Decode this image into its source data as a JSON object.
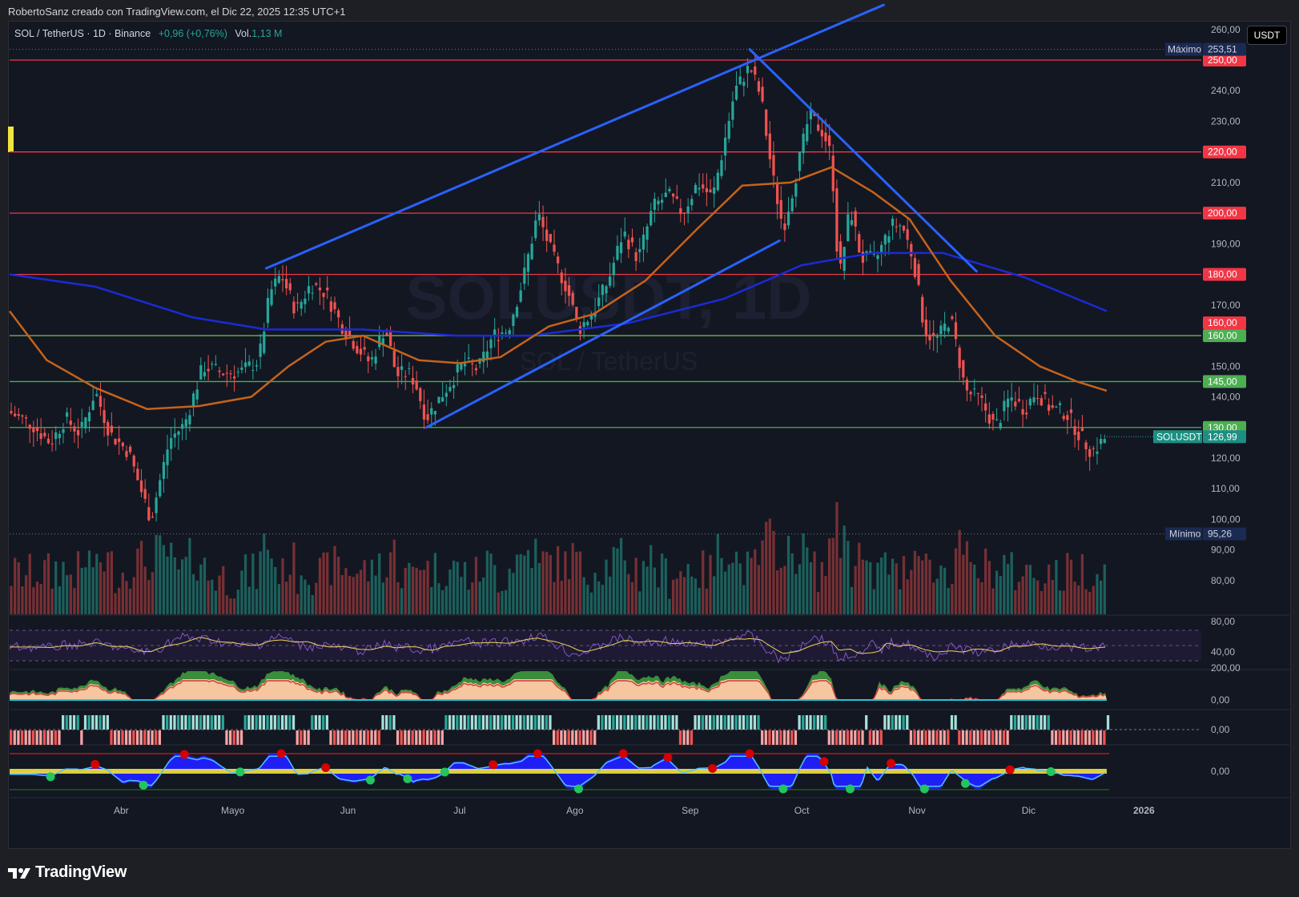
{
  "header": {
    "credit": "RobertoSanz creado con TradingView.com, el Dic 22, 2025 12:35 UTC+1",
    "symbol_line": "SOL / TetherUS · 1D · Binance",
    "change": "+0,96 (+0,76%)",
    "vol_label": "Vol.",
    "vol_value": "1,13 M",
    "currency_button": "USDT"
  },
  "watermark": {
    "symbol": "SOLUSDT, 1D",
    "name": "SOL / TetherUS"
  },
  "footer": {
    "brand": "TradingView"
  },
  "colors": {
    "bull": "#26a69a",
    "bear": "#ef5350",
    "resistance": "#f23645",
    "support": "#4caf50",
    "trendline": "#2962ff",
    "ema_fast": "#c6631a",
    "ma_slow": "#1a2bd6"
  },
  "chart_data": {
    "type": "candlestick",
    "price_axis": {
      "ticks": [
        "260,00",
        "250,00",
        "240,00",
        "230,00",
        "220,00",
        "210,00",
        "200,00",
        "190,00",
        "180,00",
        "170,00",
        "160,00",
        "150,00",
        "140,00",
        "130,00",
        "120,00",
        "110,00",
        "100,00",
        "90,00",
        "80,00"
      ],
      "range": [
        77,
        268
      ]
    },
    "time_axis": {
      "labels": [
        "Abr",
        "Mayo",
        "Jun",
        "Jul",
        "Ago",
        "Sep",
        "Oct",
        "Nov",
        "Dic",
        "2026"
      ],
      "label_dates": [
        "2025-04-01",
        "2025-05-01",
        "2025-06-01",
        "2025-07-01",
        "2025-08-01",
        "2025-09-01",
        "2025-10-01",
        "2025-11-01",
        "2025-12-01",
        "2026-01-01"
      ],
      "start": "2025-03-02",
      "end": "2025-12-22"
    },
    "price_levels": [
      {
        "value": 250.0,
        "label": "250,00",
        "type": "resistance"
      },
      {
        "value": 220.0,
        "label": "220,00",
        "type": "resistance"
      },
      {
        "value": 200.0,
        "label": "200,00",
        "type": "resistance"
      },
      {
        "value": 180.0,
        "label": "180,00",
        "type": "resistance"
      },
      {
        "value": 160.0,
        "label": "160,00",
        "type": "resistance"
      },
      {
        "value": 160.0,
        "label": "160,00",
        "type": "support"
      },
      {
        "value": 145.0,
        "label": "145,00",
        "type": "support"
      },
      {
        "value": 130.0,
        "label": "130,00",
        "type": "support"
      }
    ],
    "max_marker": {
      "label": "Máximo",
      "value": "253,51",
      "price": 253.51
    },
    "min_marker": {
      "label": "Mínimo",
      "value": "95,26",
      "price": 95.26
    },
    "last_price": {
      "label": "SOLUSDT",
      "value": "126,99",
      "price": 126.99
    },
    "trendlines": [
      {
        "from": {
          "date": "2025-05-10",
          "price": 182
        },
        "to": {
          "date": "2025-10-23",
          "price": 268
        }
      },
      {
        "from": {
          "date": "2025-06-22",
          "price": 130
        },
        "to": {
          "date": "2025-09-25",
          "price": 191
        }
      },
      {
        "from": {
          "date": "2025-09-17",
          "price": 253.5
        },
        "to": {
          "date": "2025-11-17",
          "price": 181
        }
      }
    ],
    "price_path": [
      [
        "2025-03-02",
        135
      ],
      [
        "2025-03-08",
        131
      ],
      [
        "2025-03-13",
        125
      ],
      [
        "2025-03-17",
        133
      ],
      [
        "2025-03-21",
        128
      ],
      [
        "2025-03-25",
        142
      ],
      [
        "2025-03-29",
        128
      ],
      [
        "2025-04-03",
        122
      ],
      [
        "2025-04-07",
        107
      ],
      [
        "2025-04-09",
        100
      ],
      [
        "2025-04-14",
        126
      ],
      [
        "2025-04-18",
        131
      ],
      [
        "2025-04-23",
        150
      ],
      [
        "2025-04-28",
        148
      ],
      [
        "2025-05-03",
        148
      ],
      [
        "2025-05-08",
        152
      ],
      [
        "2025-05-11",
        174
      ],
      [
        "2025-05-14",
        180
      ],
      [
        "2025-05-18",
        168
      ],
      [
        "2025-05-22",
        177
      ],
      [
        "2025-05-26",
        174
      ],
      [
        "2025-05-30",
        164
      ],
      [
        "2025-06-03",
        157
      ],
      [
        "2025-06-07",
        151
      ],
      [
        "2025-06-11",
        163
      ],
      [
        "2025-06-14",
        147
      ],
      [
        "2025-06-17",
        148
      ],
      [
        "2025-06-19",
        145
      ],
      [
        "2025-06-22",
        133
      ],
      [
        "2025-06-27",
        142
      ],
      [
        "2025-07-02",
        151
      ],
      [
        "2025-07-06",
        149
      ],
      [
        "2025-07-10",
        160
      ],
      [
        "2025-07-14",
        162
      ],
      [
        "2025-07-18",
        178
      ],
      [
        "2025-07-22",
        200
      ],
      [
        "2025-07-26",
        186
      ],
      [
        "2025-07-30",
        175
      ],
      [
        "2025-08-02",
        162
      ],
      [
        "2025-08-06",
        168
      ],
      [
        "2025-08-10",
        178
      ],
      [
        "2025-08-14",
        194
      ],
      [
        "2025-08-18",
        185
      ],
      [
        "2025-08-22",
        202
      ],
      [
        "2025-08-26",
        206
      ],
      [
        "2025-08-30",
        200
      ],
      [
        "2025-09-03",
        210
      ],
      [
        "2025-09-07",
        205
      ],
      [
        "2025-09-10",
        222
      ],
      [
        "2025-09-13",
        240
      ],
      [
        "2025-09-17",
        248
      ],
      [
        "2025-09-20",
        238
      ],
      [
        "2025-09-23",
        213
      ],
      [
        "2025-09-26",
        195
      ],
      [
        "2025-09-29",
        210
      ],
      [
        "2025-10-03",
        232
      ],
      [
        "2025-10-07",
        226
      ],
      [
        "2025-10-09",
        218
      ],
      [
        "2025-10-11",
        178
      ],
      [
        "2025-10-14",
        202
      ],
      [
        "2025-10-17",
        185
      ],
      [
        "2025-10-21",
        185
      ],
      [
        "2025-10-25",
        196
      ],
      [
        "2025-10-28",
        196
      ],
      [
        "2025-10-31",
        185
      ],
      [
        "2025-11-03",
        162
      ],
      [
        "2025-11-06",
        158
      ],
      [
        "2025-11-10",
        166
      ],
      [
        "2025-11-14",
        142
      ],
      [
        "2025-11-18",
        139
      ],
      [
        "2025-11-22",
        130
      ],
      [
        "2025-11-26",
        140
      ],
      [
        "2025-11-30",
        136
      ],
      [
        "2025-12-03",
        142
      ],
      [
        "2025-12-07",
        136
      ],
      [
        "2025-12-11",
        135
      ],
      [
        "2025-12-15",
        127
      ],
      [
        "2025-12-18",
        122
      ],
      [
        "2025-12-22",
        127
      ]
    ],
    "ema_fast": [
      [
        "2025-03-02",
        168
      ],
      [
        "2025-03-12",
        152
      ],
      [
        "2025-03-25",
        143
      ],
      [
        "2025-04-08",
        136
      ],
      [
        "2025-04-22",
        137
      ],
      [
        "2025-05-06",
        140
      ],
      [
        "2025-05-16",
        150
      ],
      [
        "2025-05-26",
        158
      ],
      [
        "2025-06-05",
        160
      ],
      [
        "2025-06-20",
        152
      ],
      [
        "2025-07-01",
        151
      ],
      [
        "2025-07-12",
        153
      ],
      [
        "2025-07-25",
        163
      ],
      [
        "2025-08-06",
        167
      ],
      [
        "2025-08-20",
        178
      ],
      [
        "2025-09-03",
        195
      ],
      [
        "2025-09-15",
        209
      ],
      [
        "2025-09-28",
        210
      ],
      [
        "2025-10-09",
        215
      ],
      [
        "2025-10-20",
        207
      ],
      [
        "2025-10-30",
        198
      ],
      [
        "2025-11-10",
        178
      ],
      [
        "2025-11-22",
        160
      ],
      [
        "2025-12-04",
        150
      ],
      [
        "2025-12-14",
        145
      ],
      [
        "2025-12-22",
        142
      ]
    ],
    "ma_slow": [
      [
        "2025-03-02",
        180
      ],
      [
        "2025-03-25",
        176
      ],
      [
        "2025-04-20",
        166
      ],
      [
        "2025-05-10",
        162
      ],
      [
        "2025-06-05",
        162
      ],
      [
        "2025-06-30",
        160
      ],
      [
        "2025-07-20",
        160
      ],
      [
        "2025-08-15",
        164
      ],
      [
        "2025-09-10",
        172
      ],
      [
        "2025-10-01",
        183
      ],
      [
        "2025-10-20",
        187
      ],
      [
        "2025-11-08",
        187
      ],
      [
        "2025-11-30",
        179
      ],
      [
        "2025-12-22",
        168
      ]
    ],
    "indicator_axes": {
      "rsi_ticks": [
        "80,00",
        "40,00"
      ],
      "osc1_ticks": [
        "200,00",
        "0,00"
      ],
      "osc2_ticks": [
        "0,00"
      ],
      "osc3_ticks": [
        "0,00"
      ]
    }
  }
}
